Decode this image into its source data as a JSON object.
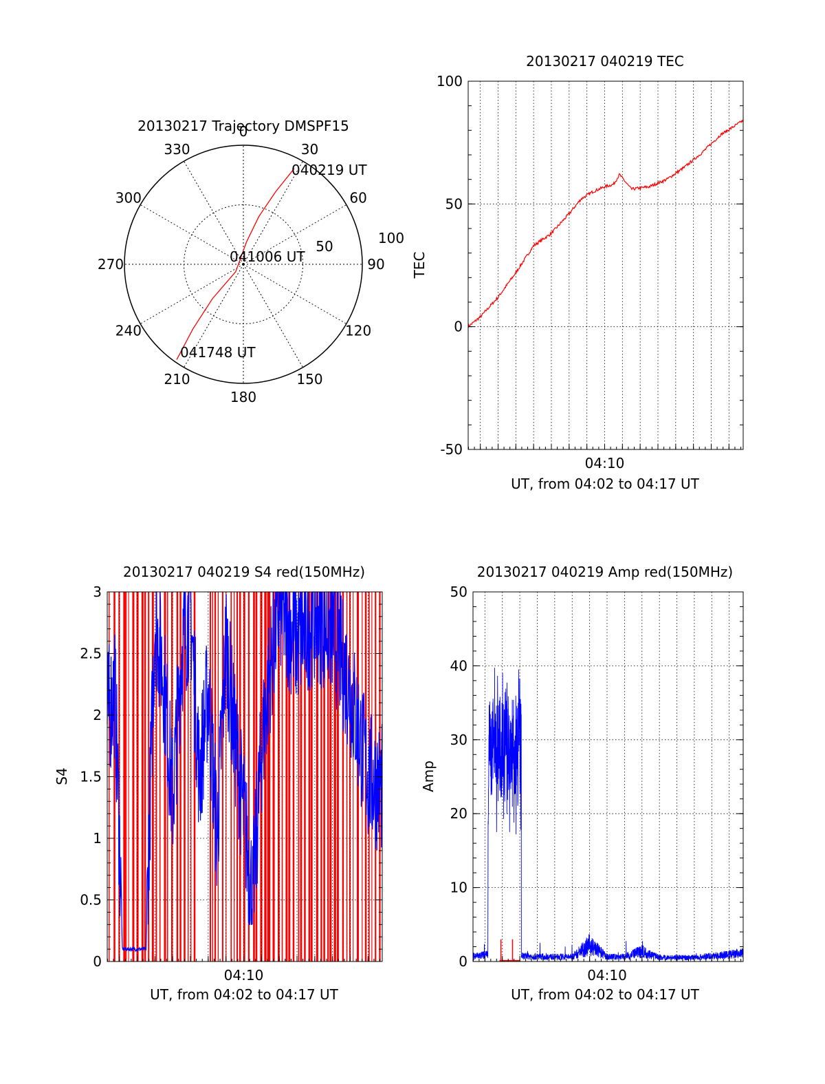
{
  "chart_data": [
    {
      "id": "trajectory",
      "type": "polar-line",
      "title": "20130217 Trajectory DMSPF15",
      "azimuth_labels": [
        "0",
        "30",
        "60",
        "90",
        "120",
        "150",
        "180",
        "210",
        "240",
        "270",
        "300",
        "330"
      ],
      "radial_labels": [
        "50",
        "100"
      ],
      "elevation_range": [
        0,
        90
      ],
      "grid": true,
      "series": [
        {
          "color": "#ff0000",
          "points": [
            {
              "azimuth": 28,
              "zenith": 82
            },
            {
              "azimuth": 24,
              "zenith": 60
            },
            {
              "azimuth": 18,
              "zenith": 38
            },
            {
              "azimuth": 8,
              "zenith": 17
            },
            {
              "azimuth": 226,
              "zenith": 8
            },
            {
              "azimuth": 222,
              "zenith": 35
            },
            {
              "azimuth": 218,
              "zenith": 62
            },
            {
              "azimuth": 215,
              "zenith": 88
            }
          ]
        }
      ],
      "annotations": [
        "040219 UT",
        "041006 UT",
        "041748 UT"
      ]
    },
    {
      "id": "tec",
      "type": "line",
      "title": "20130217 040219 TEC",
      "xlabel": "UT, from 04:02 to 04:17 UT",
      "ylabel": "TEC",
      "x_ticks": [
        "04:10"
      ],
      "y_ticks": [
        "-50",
        "0",
        "50",
        "100"
      ],
      "xlim": [
        "04:02:19",
        "04:17:48"
      ],
      "ylim": [
        -50,
        100
      ],
      "grid": true,
      "series": [
        {
          "color": "#ff0000",
          "x": [
            "04:02:19",
            "04:03:00",
            "04:04:00",
            "04:05:00",
            "04:06:00",
            "04:07:00",
            "04:08:00",
            "04:08:40",
            "04:09:20",
            "04:10:00",
            "04:10:30",
            "04:10:50",
            "04:11:30",
            "04:12:30",
            "04:13:30",
            "04:14:30",
            "04:15:30",
            "04:16:30",
            "04:17:48"
          ],
          "y": [
            0,
            4,
            12,
            22,
            33,
            38,
            46,
            52,
            55,
            57,
            58,
            62,
            56,
            57,
            60,
            65,
            71,
            78,
            84
          ]
        }
      ]
    },
    {
      "id": "s4",
      "type": "line",
      "title": "20130217 040219 S4 red(150MHz)",
      "xlabel": "UT, from 04:02 to 04:17 UT",
      "ylabel": "S4",
      "x_ticks": [
        "04:10"
      ],
      "y_ticks": [
        "0",
        "0.5",
        "1",
        "1.5",
        "2",
        "2.5",
        "3"
      ],
      "xlim": [
        "04:02:19",
        "04:17:48"
      ],
      "ylim": [
        0,
        3
      ],
      "grid": true,
      "series": [
        {
          "color": "#0000ff",
          "x": [
            "04:02:19",
            "04:02:45",
            "04:03:00",
            "04:03:10",
            "04:03:20",
            "04:04:00",
            "04:04:30",
            "04:05:00",
            "04:05:30",
            "04:06:00",
            "04:06:30",
            "04:07:00",
            "04:07:30",
            "04:08:00",
            "04:08:30",
            "04:09:00",
            "04:09:30",
            "04:10:00",
            "04:10:30",
            "04:11:00",
            "04:11:30",
            "04:12:00",
            "04:13:00",
            "04:14:00",
            "04:15:00",
            "04:16:00",
            "04:17:00",
            "04:17:48"
          ],
          "y": [
            2.0,
            2.2,
            1.0,
            0.1,
            0.1,
            0.1,
            0.1,
            2.8,
            2.3,
            1.3,
            2.5,
            2.9,
            1.5,
            2.2,
            1.0,
            2.6,
            1.8,
            1.2,
            0.5,
            1.7,
            2.4,
            2.9,
            2.6,
            2.8,
            2.7,
            2.2,
            1.5,
            1.4
          ]
        }
      ]
    },
    {
      "id": "amp",
      "type": "line",
      "title": "20130217 040219 Amp red(150MHz)",
      "xlabel": "UT, from 04:02 to 04:17 UT",
      "ylabel": "Amp",
      "x_ticks": [
        "04:10"
      ],
      "y_ticks": [
        "0",
        "10",
        "20",
        "30",
        "40",
        "50"
      ],
      "xlim": [
        "04:02:19",
        "04:17:48"
      ],
      "ylim": [
        0,
        50
      ],
      "grid": true,
      "series": [
        {
          "color": "#0000ff",
          "x": [
            "04:02:19",
            "04:03:10",
            "04:03:12",
            "04:04:00",
            "04:05:00",
            "04:05:05",
            "04:07:00",
            "04:08:00",
            "04:09:00",
            "04:10:00",
            "04:11:00",
            "04:12:00",
            "04:13:00",
            "04:14:00",
            "04:15:00",
            "04:16:00",
            "04:17:48"
          ],
          "y": [
            0.8,
            1.0,
            30,
            30,
            28,
            0.8,
            0.7,
            0.7,
            2.5,
            0.7,
            0.7,
            1.5,
            0.6,
            0.6,
            0.6,
            0.8,
            1.2
          ],
          "range": {
            "from": "04:03:12",
            "to": "04:05:05",
            "min": 17,
            "max": 40
          }
        },
        {
          "color": "#ff0000",
          "x": [
            "04:03:50",
            "04:04:00",
            "04:04:40",
            "04:05:00"
          ],
          "y": [
            0.1,
            0.1,
            0.1,
            0.1
          ]
        }
      ]
    }
  ]
}
